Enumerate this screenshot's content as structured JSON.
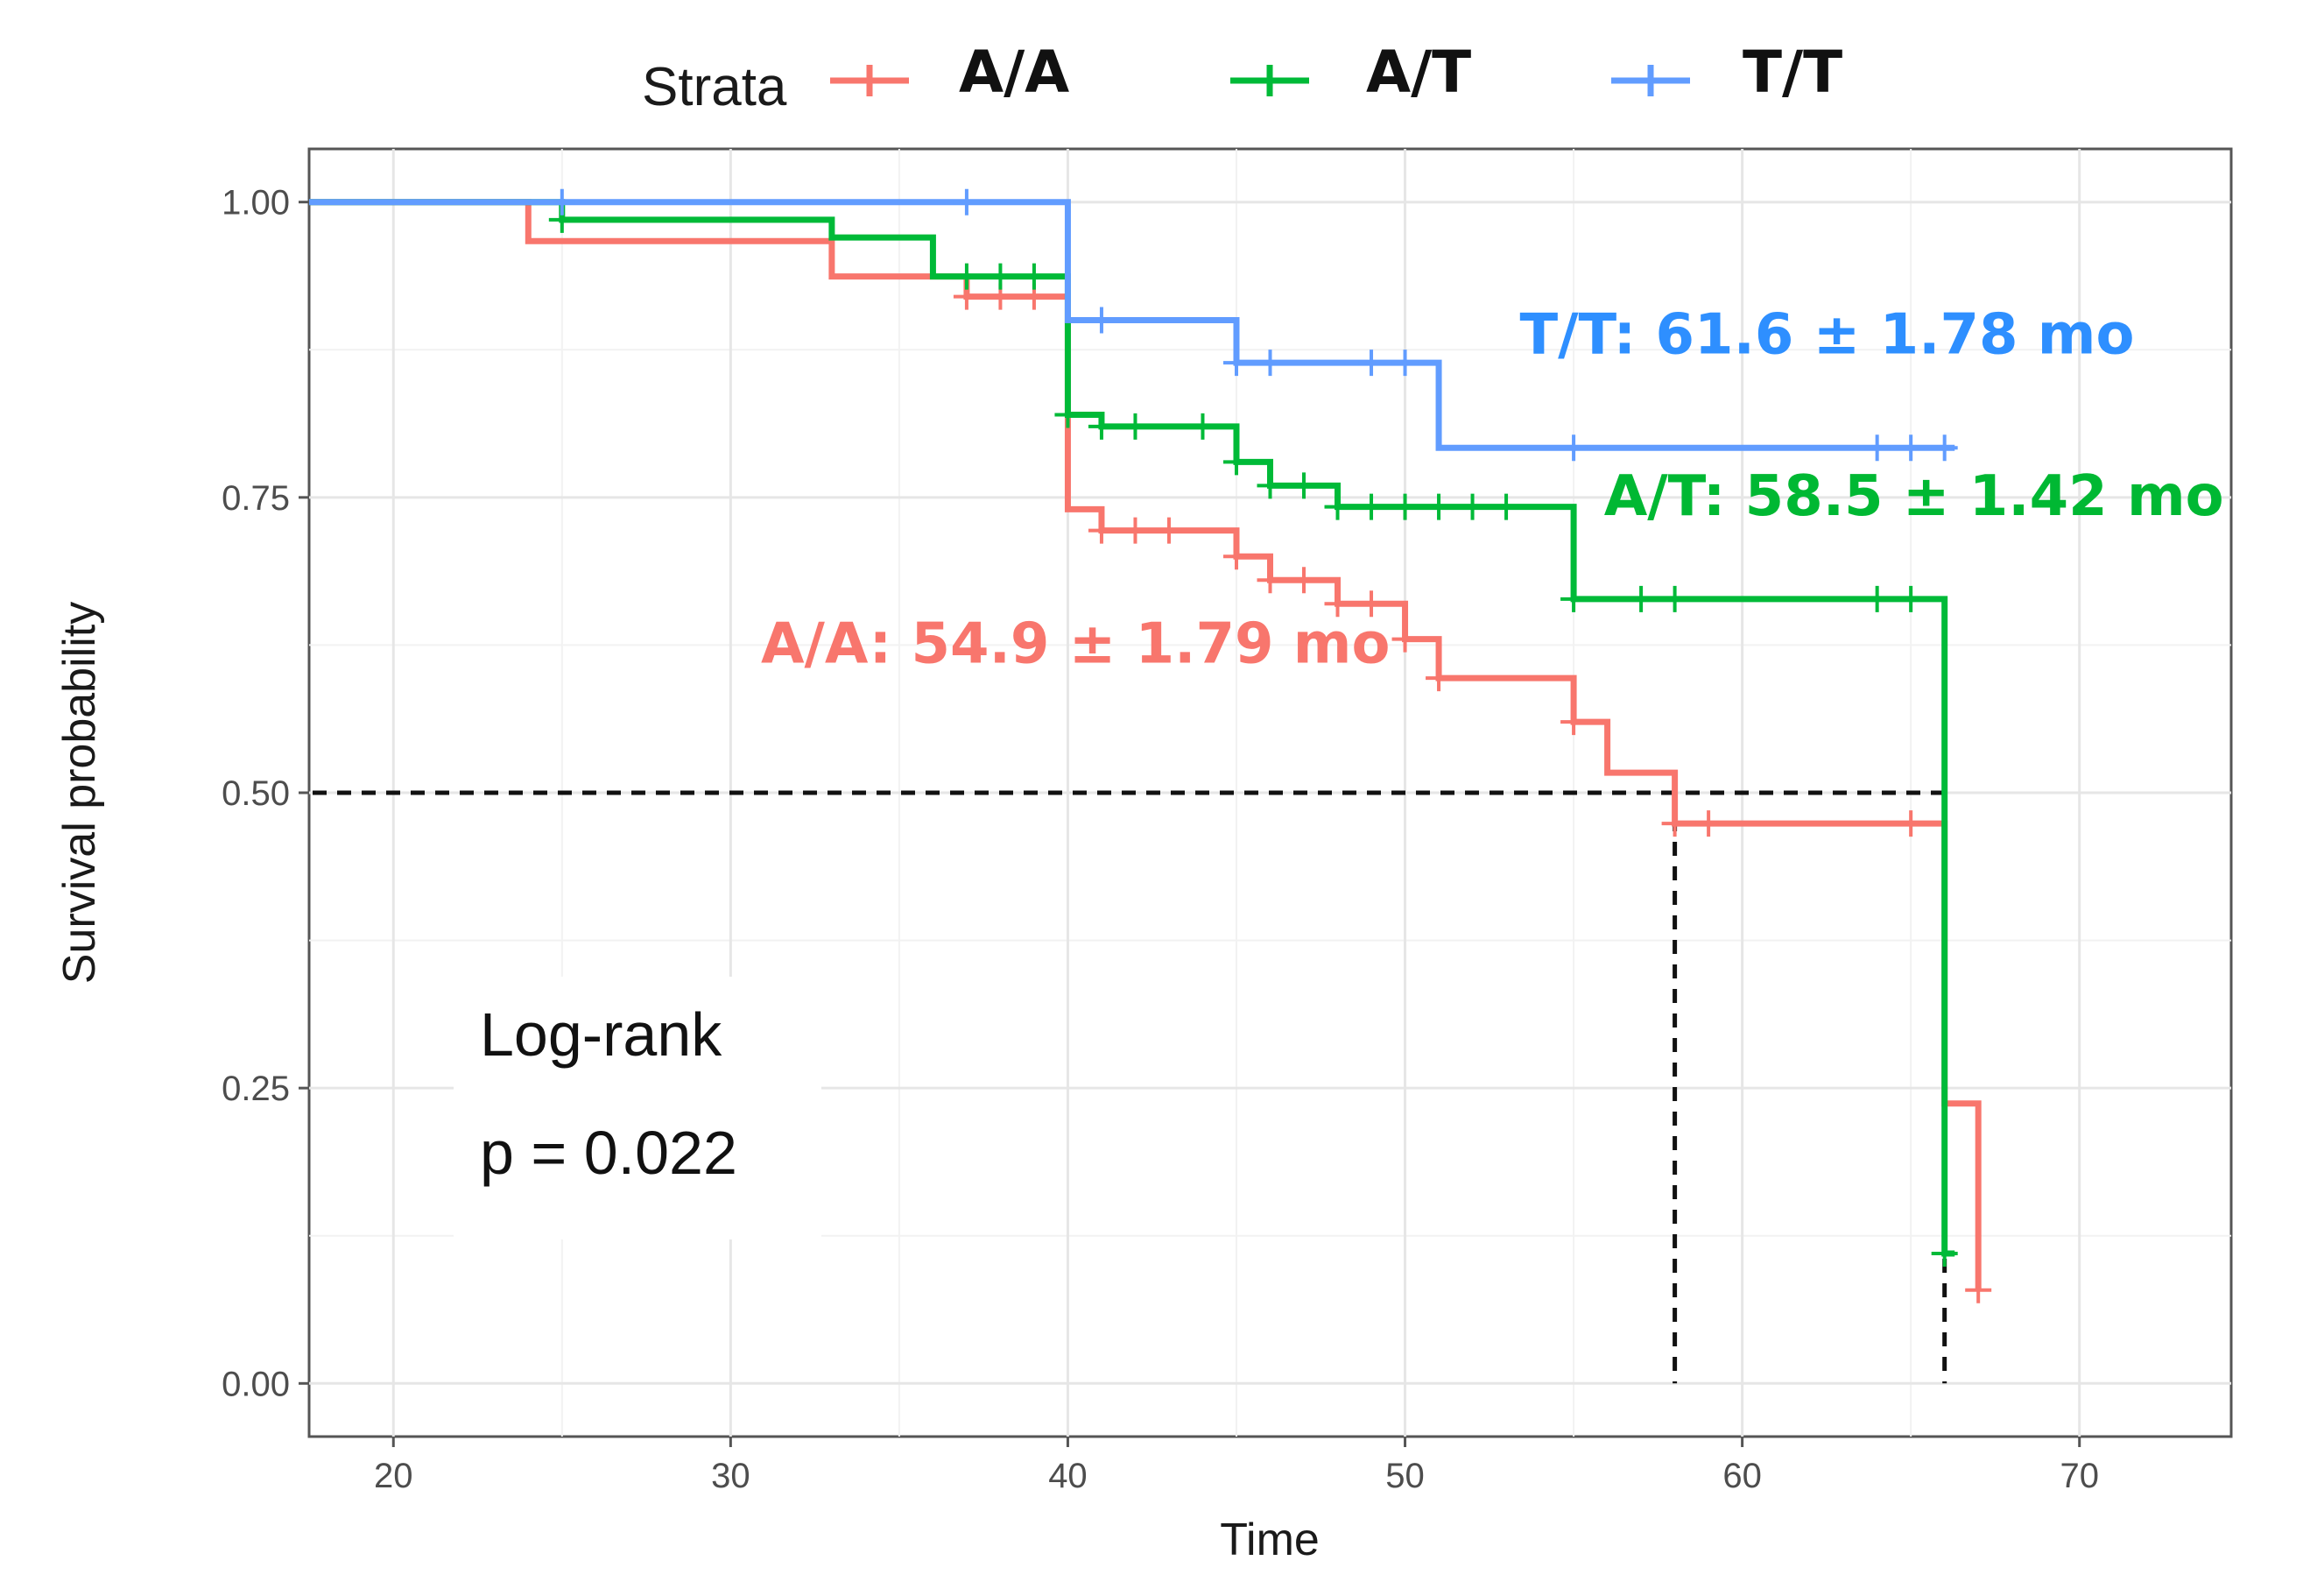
{
  "chart_data": {
    "type": "line",
    "subtype": "kaplan-meier",
    "xlabel": "Time",
    "ylabel": "Survival probability",
    "xlim": [
      17.5,
      74.5
    ],
    "ylim": [
      -0.045,
      1.045
    ],
    "x_ticks": [
      20,
      30,
      40,
      50,
      60,
      70
    ],
    "x_tick_labels": [
      "20",
      "30",
      "40",
      "50",
      "60",
      "70"
    ],
    "y_ticks": [
      0,
      0.25,
      0.5,
      0.75,
      1.0
    ],
    "y_tick_labels": [
      "0.00",
      "0.25",
      "0.50",
      "0.75",
      "1.00"
    ],
    "grid": true,
    "legend": {
      "title": "Strata",
      "position": "top",
      "entries": [
        "A/A",
        "A/T",
        "T/T"
      ]
    },
    "series": [
      {
        "name": "A/A",
        "color": "#F8766D",
        "steps": [
          [
            17.5,
            1.0
          ],
          [
            24,
            0.967
          ],
          [
            33,
            0.937
          ],
          [
            37,
            0.92
          ],
          [
            40,
            0.74
          ],
          [
            41,
            0.722
          ],
          [
            45,
            0.7
          ],
          [
            46,
            0.68
          ],
          [
            48,
            0.66
          ],
          [
            50,
            0.63
          ],
          [
            51,
            0.597
          ],
          [
            55,
            0.56
          ],
          [
            56,
            0.517
          ],
          [
            58,
            0.474
          ],
          [
            66,
            0.237
          ],
          [
            67,
            0.079
          ]
        ],
        "end_x": 67,
        "censored": [
          [
            37,
            0.92
          ],
          [
            38,
            0.92
          ],
          [
            39,
            0.92
          ],
          [
            41,
            0.722
          ],
          [
            42,
            0.722
          ],
          [
            43,
            0.722
          ],
          [
            45,
            0.7
          ],
          [
            46,
            0.68
          ],
          [
            47,
            0.68
          ],
          [
            48,
            0.66
          ],
          [
            49,
            0.66
          ],
          [
            50,
            0.63
          ],
          [
            51,
            0.597
          ],
          [
            55,
            0.56
          ],
          [
            58,
            0.474
          ],
          [
            59,
            0.474
          ],
          [
            65,
            0.474
          ],
          [
            67,
            0.079
          ]
        ]
      },
      {
        "name": "A/T",
        "color": "#00BA38",
        "steps": [
          [
            17.5,
            1.0
          ],
          [
            25,
            0.985
          ],
          [
            33,
            0.97
          ],
          [
            36,
            0.937
          ],
          [
            40,
            0.82
          ],
          [
            41,
            0.81
          ],
          [
            45,
            0.78
          ],
          [
            46,
            0.76
          ],
          [
            48,
            0.742
          ],
          [
            55,
            0.664
          ],
          [
            66,
            0.11
          ]
        ],
        "end_x": 66.3,
        "censored": [
          [
            25,
            0.985
          ],
          [
            37,
            0.937
          ],
          [
            38,
            0.937
          ],
          [
            39,
            0.937
          ],
          [
            40,
            0.82
          ],
          [
            41,
            0.81
          ],
          [
            42,
            0.81
          ],
          [
            44,
            0.81
          ],
          [
            45,
            0.78
          ],
          [
            46,
            0.76
          ],
          [
            47,
            0.76
          ],
          [
            48,
            0.742
          ],
          [
            49,
            0.742
          ],
          [
            50,
            0.742
          ],
          [
            51,
            0.742
          ],
          [
            52,
            0.742
          ],
          [
            53,
            0.742
          ],
          [
            55,
            0.664
          ],
          [
            57,
            0.664
          ],
          [
            58,
            0.664
          ],
          [
            64,
            0.664
          ],
          [
            65,
            0.664
          ],
          [
            66,
            0.11
          ]
        ]
      },
      {
        "name": "T/T",
        "color": "#619CFF",
        "steps": [
          [
            17.5,
            1.0
          ],
          [
            40,
            0.9
          ],
          [
            45,
            0.864
          ],
          [
            51,
            0.792
          ]
        ],
        "end_x": 66.3,
        "censored": [
          [
            25,
            1.0
          ],
          [
            37,
            1.0
          ],
          [
            41,
            0.9
          ],
          [
            45,
            0.864
          ],
          [
            46,
            0.864
          ],
          [
            49,
            0.864
          ],
          [
            50,
            0.864
          ],
          [
            55,
            0.792
          ],
          [
            64,
            0.792
          ],
          [
            65,
            0.792
          ],
          [
            66,
            0.792
          ]
        ]
      }
    ],
    "median_lines": {
      "y": 0.5,
      "x_start": 17.5,
      "x_end": 66,
      "drop_x": [
        58,
        66
      ]
    },
    "annotations": [
      {
        "text": "T/T: 61.6 ± 1.78 mo",
        "color": "#2E8FFF",
        "x": 53.4,
        "y": 0.872
      },
      {
        "text": "A/T: 58.5 ± 1.42 mo",
        "color": "#00B833",
        "x": 55.9,
        "y": 0.735
      },
      {
        "text": "A/A: 54.9 ± 1.79 mo",
        "color": "#F8766D",
        "x": 30.9,
        "y": 0.61
      }
    ],
    "logrank": {
      "line1": "Log-rank",
      "line2": "p = 0.022"
    }
  }
}
